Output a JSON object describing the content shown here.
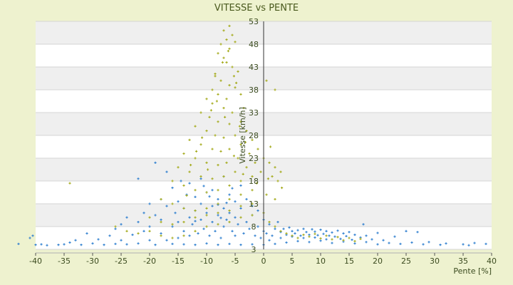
{
  "chart_data": {
    "type": "scatter",
    "title": "VITESSE vs PENTE",
    "xlabel": "Pente [%]",
    "ylabel": "Vitesse [km/h]",
    "xlim": [
      -40,
      40
    ],
    "ylim": [
      3,
      53
    ],
    "x_ticks": [
      -40,
      -35,
      -30,
      -25,
      -20,
      -15,
      -10,
      -5,
      0,
      5,
      10,
      15,
      20,
      25,
      30,
      35,
      40
    ],
    "y_ticks": [
      3,
      8,
      13,
      18,
      23,
      28,
      33,
      38,
      43,
      48,
      53
    ],
    "band_stripes": true,
    "series": [
      {
        "color": "#2f7fcf",
        "marker": "+",
        "points": [
          [
            -43,
            4.2
          ],
          [
            -41,
            5.5
          ],
          [
            -40.5,
            6.0
          ],
          [
            -40,
            4.0
          ],
          [
            -39,
            4.1
          ],
          [
            -38,
            3.9
          ],
          [
            -36,
            4.0
          ],
          [
            -35,
            4.1
          ],
          [
            -34,
            4.5
          ],
          [
            -33,
            5.0
          ],
          [
            -32,
            4.0
          ],
          [
            -31,
            6.5
          ],
          [
            -30,
            4.3
          ],
          [
            -29,
            5.2
          ],
          [
            -28,
            4.0
          ],
          [
            -27,
            6.0
          ],
          [
            -26,
            7.5
          ],
          [
            -26,
            4.2
          ],
          [
            -25,
            5.0
          ],
          [
            -25,
            8.5
          ],
          [
            -24,
            4.1
          ],
          [
            -24,
            10.0
          ],
          [
            -23,
            6.2
          ],
          [
            -22,
            4.3
          ],
          [
            -22,
            9.0
          ],
          [
            -22,
            18.5
          ],
          [
            -21,
            7.0
          ],
          [
            -21,
            11.0
          ],
          [
            -20,
            5.0
          ],
          [
            -20,
            8.0
          ],
          [
            -20,
            13.0
          ],
          [
            -19,
            4.0
          ],
          [
            -19,
            10.5
          ],
          [
            -19,
            22.0
          ],
          [
            -18,
            6.5
          ],
          [
            -18,
            9.5
          ],
          [
            -18,
            14.0
          ],
          [
            -17,
            5.0
          ],
          [
            -17,
            12.5
          ],
          [
            -17,
            20.0
          ],
          [
            -16,
            4.2
          ],
          [
            -16,
            8.0
          ],
          [
            -16,
            16.5
          ],
          [
            -15.5,
            11.0
          ],
          [
            -15,
            5.5
          ],
          [
            -15,
            9.0
          ],
          [
            -15,
            13.5
          ],
          [
            -14.5,
            18.0
          ],
          [
            -14,
            4.1
          ],
          [
            -14,
            7.0
          ],
          [
            -14,
            12.0
          ],
          [
            -13.5,
            15.0
          ],
          [
            -13,
            6.0
          ],
          [
            -13,
            10.0
          ],
          [
            -13,
            17.5
          ],
          [
            -12.5,
            8.5
          ],
          [
            -12,
            4.0
          ],
          [
            -12,
            11.5
          ],
          [
            -12,
            14.5
          ],
          [
            -11.5,
            6.5
          ],
          [
            -11,
            9.5
          ],
          [
            -11,
            13.0
          ],
          [
            -11,
            18.5
          ],
          [
            -10.5,
            7.5
          ],
          [
            -10,
            4.3
          ],
          [
            -10,
            11.0
          ],
          [
            -10,
            15.5
          ],
          [
            -9.5,
            6.0
          ],
          [
            -9,
            9.0
          ],
          [
            -9,
            12.5
          ],
          [
            -9,
            16.0
          ],
          [
            -8.5,
            7.0
          ],
          [
            -8,
            4.0
          ],
          [
            -8,
            10.5
          ],
          [
            -8,
            14.0
          ],
          [
            -7.5,
            5.5
          ],
          [
            -7,
            8.0
          ],
          [
            -7,
            12.0
          ],
          [
            -7,
            19.0
          ],
          [
            -6.5,
            9.5
          ],
          [
            -6,
            4.2
          ],
          [
            -6,
            11.0
          ],
          [
            -6,
            15.0
          ],
          [
            -5.5,
            7.0
          ],
          [
            -5,
            6.0
          ],
          [
            -5,
            10.0
          ],
          [
            -5,
            13.5
          ],
          [
            -4.5,
            8.5
          ],
          [
            -4,
            4.0
          ],
          [
            -4,
            12.0
          ],
          [
            -4,
            17.0
          ],
          [
            -3.5,
            6.5
          ],
          [
            -3,
            9.0
          ],
          [
            -3,
            14.0
          ],
          [
            -2.5,
            7.5
          ],
          [
            -2,
            4.1
          ],
          [
            -2,
            10.5
          ],
          [
            -2,
            12.5
          ],
          [
            -1.5,
            6.0
          ],
          [
            -1,
            8.0
          ],
          [
            -1,
            11.5
          ],
          [
            -0.5,
            5.5
          ],
          [
            0,
            4.0
          ],
          [
            0,
            7.0
          ],
          [
            0,
            9.5
          ],
          [
            0.5,
            6.5
          ],
          [
            1,
            5.0
          ],
          [
            1,
            8.5
          ],
          [
            1.5,
            6.0
          ],
          [
            2,
            4.2
          ],
          [
            2,
            7.5
          ],
          [
            2.5,
            9.0
          ],
          [
            3,
            5.5
          ],
          [
            3,
            6.8
          ],
          [
            3.5,
            7.5
          ],
          [
            4,
            4.5
          ],
          [
            4,
            6.2
          ],
          [
            4.5,
            7.8
          ],
          [
            5,
            5.8
          ],
          [
            5,
            7.0
          ],
          [
            5.5,
            6.5
          ],
          [
            6,
            4.8
          ],
          [
            6,
            7.2
          ],
          [
            6.5,
            6.0
          ],
          [
            7,
            5.5
          ],
          [
            7,
            7.5
          ],
          [
            7.5,
            6.8
          ],
          [
            8,
            4.6
          ],
          [
            8,
            6.2
          ],
          [
            8.5,
            7.4
          ],
          [
            9,
            5.6
          ],
          [
            9,
            6.9
          ],
          [
            9.5,
            6.1
          ],
          [
            10,
            4.9
          ],
          [
            10,
            7.3
          ],
          [
            10.5,
            6.4
          ],
          [
            11,
            5.2
          ],
          [
            11,
            7.0
          ],
          [
            11.5,
            6.0
          ],
          [
            12,
            4.4
          ],
          [
            12,
            6.7
          ],
          [
            12.5,
            5.8
          ],
          [
            13,
            7.1
          ],
          [
            13.5,
            5.3
          ],
          [
            14,
            4.7
          ],
          [
            14,
            6.5
          ],
          [
            14.5,
            5.9
          ],
          [
            15,
            6.8
          ],
          [
            15.5,
            5.1
          ],
          [
            16,
            4.3
          ],
          [
            16,
            6.2
          ],
          [
            17,
            5.6
          ],
          [
            17.5,
            8.5
          ],
          [
            18,
            4.6
          ],
          [
            18,
            6.0
          ],
          [
            19,
            5.2
          ],
          [
            20,
            4.1
          ],
          [
            20,
            6.6
          ],
          [
            21,
            5.0
          ],
          [
            22,
            4.4
          ],
          [
            23,
            5.8
          ],
          [
            24,
            4.2
          ],
          [
            25,
            7.0
          ],
          [
            26,
            4.5
          ],
          [
            27,
            6.8
          ],
          [
            28,
            4.1
          ],
          [
            29,
            4.6
          ],
          [
            31,
            4.0
          ],
          [
            32,
            4.3
          ],
          [
            35,
            4.1
          ],
          [
            36,
            3.9
          ],
          [
            37,
            4.4
          ],
          [
            39,
            4.2
          ],
          [
            -8,
            12.8
          ],
          [
            -9.5,
            14.6
          ],
          [
            -10.5,
            16.9
          ],
          [
            -7.5,
            9.9
          ],
          [
            -6.5,
            13.2
          ],
          [
            -5.5,
            16.4
          ],
          [
            -12,
            9.2
          ]
        ]
      },
      {
        "color": "#a5ab1e",
        "marker": "+",
        "points": [
          [
            -7,
            51
          ],
          [
            -6.5,
            49
          ],
          [
            -6,
            52
          ],
          [
            -5.5,
            50
          ],
          [
            -7.5,
            48
          ],
          [
            -6,
            47
          ],
          [
            -5,
            48.5
          ],
          [
            -8,
            46
          ],
          [
            -7,
            45
          ],
          [
            -6.5,
            44
          ],
          [
            -5.5,
            43
          ],
          [
            -4.5,
            42
          ],
          [
            -8.5,
            41
          ],
          [
            -7.5,
            40
          ],
          [
            -6,
            39
          ],
          [
            -5,
            38.5
          ],
          [
            -9,
            38
          ],
          [
            -8,
            37
          ],
          [
            -6.5,
            36
          ],
          [
            -4,
            37
          ],
          [
            -10,
            36
          ],
          [
            -9,
            35
          ],
          [
            -7,
            34
          ],
          [
            -5.5,
            33
          ],
          [
            -3.5,
            34
          ],
          [
            -11,
            33
          ],
          [
            -9.5,
            32
          ],
          [
            -8,
            31
          ],
          [
            -6,
            30.5
          ],
          [
            -4,
            31
          ],
          [
            -12,
            30
          ],
          [
            -10,
            29
          ],
          [
            -8.5,
            28
          ],
          [
            -7,
            27.5
          ],
          [
            -5,
            28
          ],
          [
            -3,
            29
          ],
          [
            -13,
            27
          ],
          [
            -11,
            26
          ],
          [
            -9,
            25
          ],
          [
            -7.5,
            24.5
          ],
          [
            -6,
            25
          ],
          [
            -4,
            26
          ],
          [
            -2,
            27
          ],
          [
            -14,
            24
          ],
          [
            -12,
            23
          ],
          [
            -10,
            22
          ],
          [
            -8,
            21.5
          ],
          [
            -6.5,
            22
          ],
          [
            -4.5,
            23
          ],
          [
            -2.5,
            24
          ],
          [
            -1,
            25
          ],
          [
            -15,
            21
          ],
          [
            -13,
            20
          ],
          [
            -11,
            19
          ],
          [
            -9,
            18.5
          ],
          [
            -7,
            19
          ],
          [
            -5,
            20
          ],
          [
            -3,
            21
          ],
          [
            -1.5,
            22
          ],
          [
            0,
            23
          ],
          [
            1,
            22
          ],
          [
            2,
            21
          ],
          [
            3,
            20
          ],
          [
            -34,
            17.5
          ],
          [
            -16,
            18
          ],
          [
            -14,
            17
          ],
          [
            -12,
            16
          ],
          [
            -10,
            15.5
          ],
          [
            -8,
            16
          ],
          [
            -6,
            17
          ],
          [
            -4,
            18
          ],
          [
            -2,
            19
          ],
          [
            -0.5,
            20
          ],
          [
            1.5,
            19
          ],
          [
            2.5,
            18
          ],
          [
            2,
            38
          ],
          [
            0.5,
            40
          ],
          [
            -18,
            14
          ],
          [
            -16,
            13
          ],
          [
            -14,
            12
          ],
          [
            -12,
            11.5
          ],
          [
            -10,
            12
          ],
          [
            -8,
            13
          ],
          [
            -6,
            14
          ],
          [
            -4,
            15
          ],
          [
            -2,
            16
          ],
          [
            0.5,
            15
          ],
          [
            2,
            14
          ],
          [
            -20,
            10
          ],
          [
            -18,
            9
          ],
          [
            -16,
            8.5
          ],
          [
            -14,
            9
          ],
          [
            -12,
            10
          ],
          [
            -10,
            10.5
          ],
          [
            -8,
            11
          ],
          [
            -6,
            11.5
          ],
          [
            -4,
            12.5
          ],
          [
            -2,
            13
          ],
          [
            -26,
            8
          ],
          [
            -24,
            7
          ],
          [
            -22,
            6.5
          ],
          [
            -20,
            7
          ],
          [
            -18,
            6
          ],
          [
            -16,
            5.5
          ],
          [
            -14,
            6
          ],
          [
            -12,
            7
          ],
          [
            -10,
            8
          ],
          [
            -8,
            8.5
          ],
          [
            -6,
            9
          ],
          [
            -4,
            10
          ],
          [
            -2,
            10.5
          ],
          [
            0,
            11
          ],
          [
            1,
            9
          ],
          [
            2,
            8
          ],
          [
            3,
            7
          ],
          [
            4,
            6.5
          ],
          [
            5,
            6
          ],
          [
            6,
            5.5
          ],
          [
            7,
            6.2
          ],
          [
            8,
            5.8
          ],
          [
            9,
            6.4
          ],
          [
            10,
            5.4
          ],
          [
            11,
            6.0
          ],
          [
            12,
            5.2
          ],
          [
            13,
            5.7
          ],
          [
            14,
            5.0
          ],
          [
            15,
            5.5
          ],
          [
            16,
            4.8
          ],
          [
            17,
            5.3
          ],
          [
            -8.5,
            41.5
          ],
          [
            -7.2,
            44
          ],
          [
            -6.2,
            46.5
          ],
          [
            -5.2,
            41
          ],
          [
            -4.8,
            39.5
          ],
          [
            -9.2,
            33.5
          ],
          [
            -8.2,
            35.5
          ],
          [
            -6.8,
            32
          ],
          [
            -4.2,
            30
          ],
          [
            -3.2,
            26.5
          ],
          [
            -10.8,
            27.5
          ],
          [
            -11.8,
            24.5
          ],
          [
            -12.8,
            21.5
          ],
          [
            -9.8,
            20.5
          ],
          [
            -5.2,
            23.5
          ],
          [
            -3.6,
            19.5
          ],
          [
            -1.2,
            17.5
          ],
          [
            0.8,
            18.5
          ],
          [
            1.2,
            25.5
          ],
          [
            3.2,
            16.5
          ],
          [
            -13.5,
            14.8
          ]
        ]
      }
    ]
  }
}
